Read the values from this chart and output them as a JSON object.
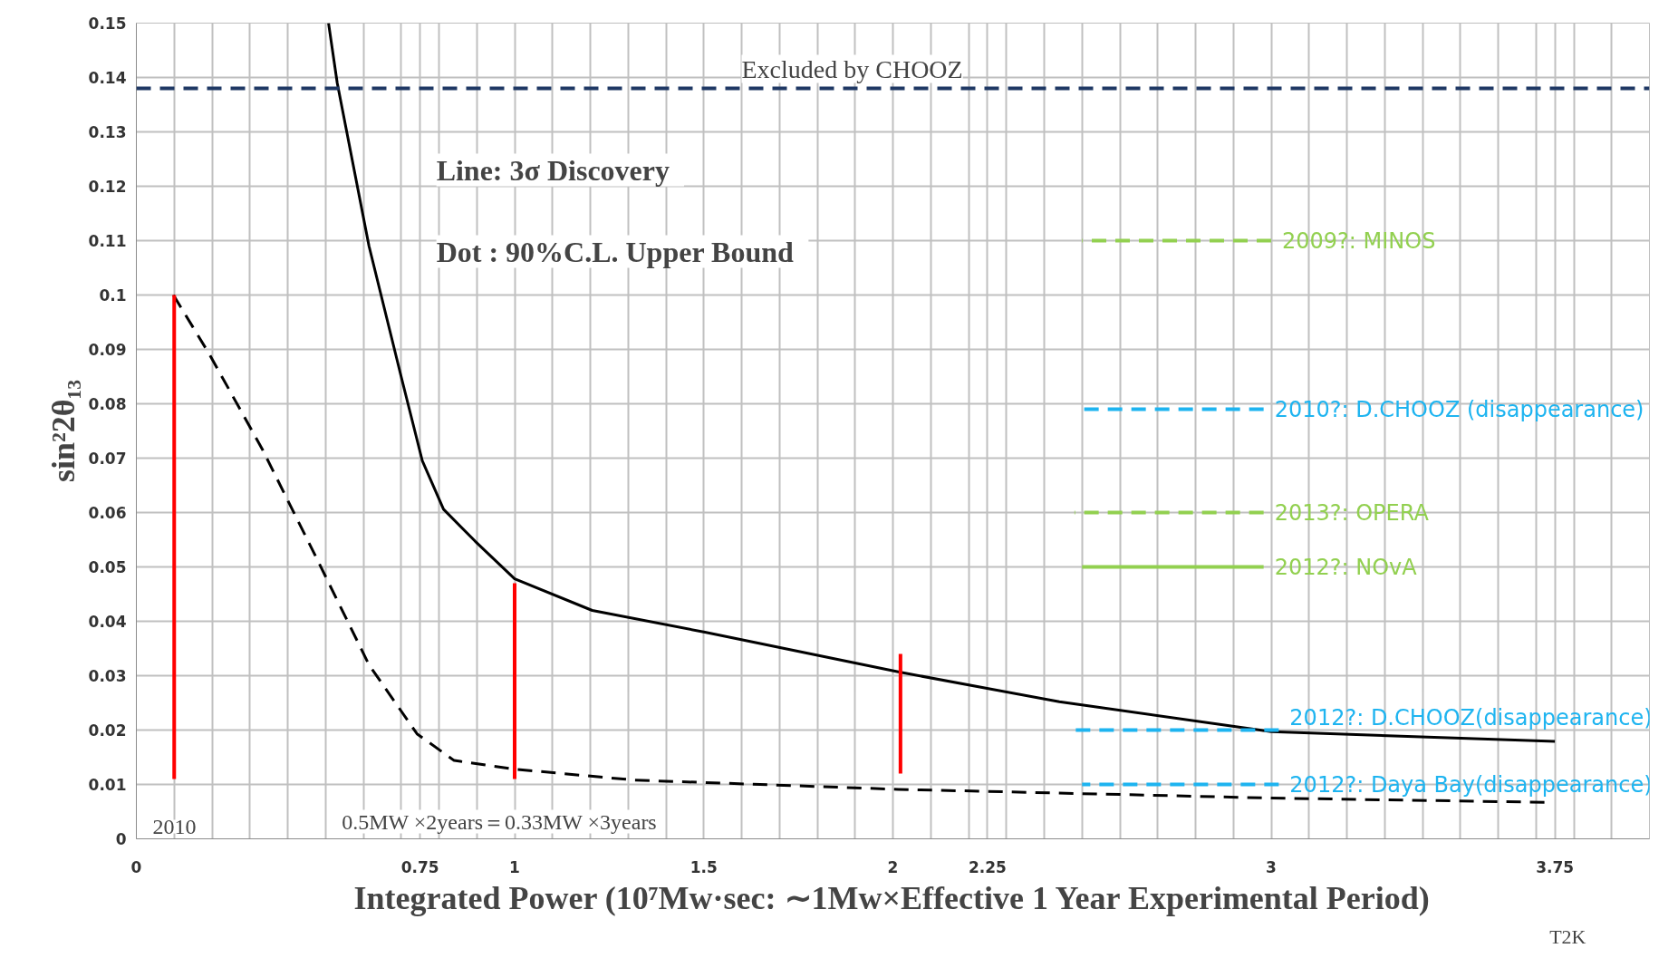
{
  "chart_data": {
    "type": "line",
    "xlabel": "Integrated Power (10⁷Mw·sec: ∼1Mw×Effective 1 Year Experimental Period)",
    "ylabel": "sin²2θ₁₃",
    "xlim": [
      0,
      4
    ],
    "ylim": [
      0,
      0.15
    ],
    "xticks": [
      0,
      {
        "value": 0.1,
        "label": null
      },
      {
        "value": 0.2,
        "label": null
      },
      {
        "value": 0.3,
        "label": null
      },
      {
        "value": 0.4,
        "label": null
      },
      {
        "value": 0.5,
        "label": null
      },
      {
        "value": 0.6,
        "label": null
      },
      {
        "value": 0.7,
        "label": null
      },
      0.75,
      {
        "value": 0.8,
        "label": null
      },
      {
        "value": 0.9,
        "label": null
      },
      1,
      {
        "value": 1.1,
        "label": null
      },
      {
        "value": 1.2,
        "label": null
      },
      {
        "value": 1.3,
        "label": null
      },
      {
        "value": 1.4,
        "label": null
      },
      1.5,
      {
        "value": 1.6,
        "label": null
      },
      {
        "value": 1.7,
        "label": null
      },
      {
        "value": 1.8,
        "label": null
      },
      {
        "value": 1.9,
        "label": null
      },
      2,
      {
        "value": 2.1,
        "label": null
      },
      {
        "value": 2.2,
        "label": null
      },
      2.25,
      {
        "value": 2.3,
        "label": null
      },
      {
        "value": 2.4,
        "label": null
      },
      {
        "value": 2.5,
        "label": null
      },
      {
        "value": 2.6,
        "label": null
      },
      {
        "value": 2.7,
        "label": null
      },
      {
        "value": 2.8,
        "label": null
      },
      {
        "value": 2.9,
        "label": null
      },
      3,
      {
        "value": 3.1,
        "label": null
      },
      {
        "value": 3.2,
        "label": null
      },
      {
        "value": 3.3,
        "label": null
      },
      {
        "value": 3.4,
        "label": null
      },
      {
        "value": 3.5,
        "label": null
      },
      {
        "value": 3.6,
        "label": null
      },
      {
        "value": 3.7,
        "label": null
      },
      3.75,
      {
        "value": 3.8,
        "label": null
      },
      {
        "value": 3.9,
        "label": null
      },
      {
        "value": 4,
        "label": null
      }
    ],
    "yticks": [
      0,
      0.01,
      0.02,
      0.03,
      0.04,
      0.05,
      0.06,
      0.07,
      0.08,
      0.09,
      0.1,
      0.11,
      0.12,
      0.13,
      0.14,
      0.15
    ],
    "grid": true,
    "series": [
      {
        "color": "#000000",
        "line_style": "solid",
        "x": [
          0.508,
          0.531,
          0.615,
          0.7,
          0.756,
          0.812,
          0.896,
          1.0,
          1.205,
          1.503,
          2.014,
          2.44,
          3.0,
          3.75
        ],
        "values": [
          0.15,
          0.139,
          0.109,
          0.085,
          0.0695,
          0.0606,
          0.0547,
          0.0478,
          0.042,
          0.038,
          0.0307,
          0.0252,
          0.0197,
          0.0179
        ]
      },
      {
        "color": "#000000",
        "line_style": "dashed",
        "x": [
          0.098,
          0.194,
          0.334,
          0.475,
          0.615,
          0.742,
          0.84,
          1.0,
          1.317,
          2.014,
          3.0,
          3.73
        ],
        "values": [
          0.1,
          0.089,
          0.0715,
          0.0518,
          0.032,
          0.0193,
          0.0144,
          0.0128,
          0.0108,
          0.0091,
          0.0075,
          0.0067
        ]
      },
      {
        "color": "#ff0000",
        "line_style": "solid",
        "x": [
          0.1,
          0.1
        ],
        "values": [
          0.011,
          0.1
        ]
      },
      {
        "color": "#ff0000",
        "line_style": "solid",
        "x": [
          1.0,
          1.0
        ],
        "values": [
          0.011,
          0.047
        ]
      },
      {
        "color": "#ff0000",
        "line_style": "solid",
        "x": [
          2.02,
          2.02
        ],
        "values": [
          0.012,
          0.034
        ]
      },
      {
        "name": "2009?: MINOS",
        "color": "#92d050",
        "line_style": "dashed",
        "x": [
          3.0,
          2.5
        ],
        "values": [
          0.11,
          0.11
        ]
      },
      {
        "name": "2010?: D.CHOOZ (disappearance)",
        "color": "#1eb4f0",
        "line_style": "dashed",
        "x": [
          2.98,
          2.5
        ],
        "values": [
          0.079,
          0.079
        ]
      },
      {
        "name": "2013?: OPERA",
        "color": "#92d050",
        "line_style": "dashed",
        "x": [
          2.98,
          2.48
        ],
        "values": [
          0.06,
          0.06
        ]
      },
      {
        "name": "2012?: NOvA",
        "color": "#92d050",
        "line_style": "solid",
        "x": [
          2.98,
          2.5
        ],
        "values": [
          0.05,
          0.05
        ]
      },
      {
        "name": "2012?: D.CHOOZ(disappearance)",
        "color": "#1eb4f0",
        "line_style": "dashed",
        "x": [
          3.02,
          2.48
        ],
        "values": [
          0.02,
          0.02
        ]
      },
      {
        "name": "2012?: Daya Bay(disappearance)",
        "color": "#1eb4f0",
        "line_style": "dashed",
        "x": [
          3.02,
          2.5
        ],
        "values": [
          0.01,
          0.01
        ]
      }
    ],
    "ref_lines": [
      {
        "axis": "y",
        "value": 0.138,
        "label": "Excluded by CHOOZ",
        "color": "#1f3864",
        "line_style": "dashed"
      }
    ],
    "annotations": [
      "Line:   3σ Discovery",
      "Dot :   90%C.L. Upper Bound",
      "2010",
      "0.5MW ×2years＝0.33MW ×3years",
      "T2K"
    ]
  }
}
